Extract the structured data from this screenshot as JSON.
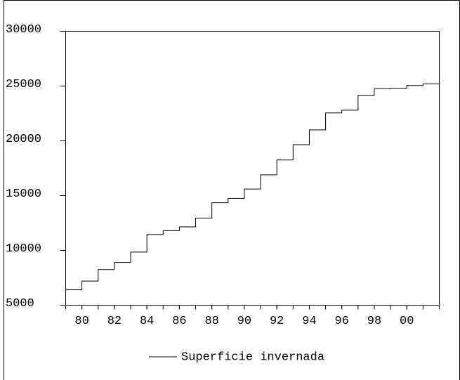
{
  "chart_data": {
    "type": "line",
    "step": "post",
    "x": [
      1979,
      1980,
      1981,
      1982,
      1983,
      1984,
      1985,
      1986,
      1987,
      1988,
      1989,
      1990,
      1991,
      1992,
      1993,
      1994,
      1995,
      1996,
      1997,
      1998,
      1999,
      2000,
      2001
    ],
    "series": [
      {
        "name": "Superficie invernada",
        "color": "#000000",
        "values": [
          6400,
          7200,
          8250,
          8900,
          9850,
          11450,
          11800,
          12150,
          12950,
          14350,
          14750,
          15600,
          16900,
          18250,
          19650,
          21000,
          22550,
          22800,
          24150,
          24750,
          24800,
          25050,
          25200
        ]
      }
    ],
    "xlim": [
      1979,
      2002
    ],
    "xticks": [
      {
        "value": 1980,
        "label": "80"
      },
      {
        "value": 1982,
        "label": "82"
      },
      {
        "value": 1984,
        "label": "84"
      },
      {
        "value": 1986,
        "label": "86"
      },
      {
        "value": 1988,
        "label": "88"
      },
      {
        "value": 1990,
        "label": "90"
      },
      {
        "value": 1992,
        "label": "92"
      },
      {
        "value": 1994,
        "label": "94"
      },
      {
        "value": 1996,
        "label": "96"
      },
      {
        "value": 1998,
        "label": "98"
      },
      {
        "value": 2000,
        "label": "00"
      }
    ],
    "ylim": [
      5000,
      30000
    ],
    "yticks": [
      5000,
      10000,
      15000,
      20000,
      25000,
      30000
    ],
    "legend": "bottom"
  }
}
